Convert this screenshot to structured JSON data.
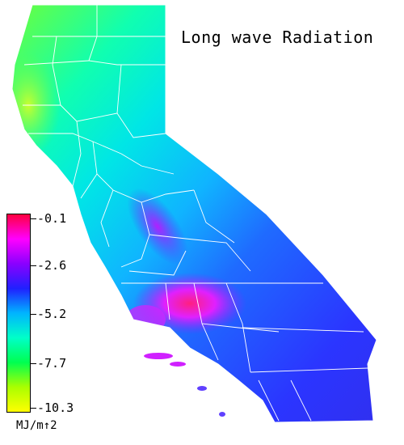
{
  "map": {
    "title": "Long wave Radiation",
    "legend": {
      "unit": "MJ/m↑2",
      "ticks": [
        {
          "label": "-0.1",
          "value": -0.1
        },
        {
          "label": "-2.6",
          "value": -2.6
        },
        {
          "label": "-5.2",
          "value": -5.2
        },
        {
          "label": "-7.7",
          "value": -7.7
        },
        {
          "label": "-10.3",
          "value": -10.3
        }
      ],
      "colors": [
        "#ff0040",
        "#ff00ff",
        "#8a00ff",
        "#2020ff",
        "#00b4ff",
        "#00ffc8",
        "#00ff50",
        "#aaff00",
        "#ffff00"
      ]
    }
  }
}
